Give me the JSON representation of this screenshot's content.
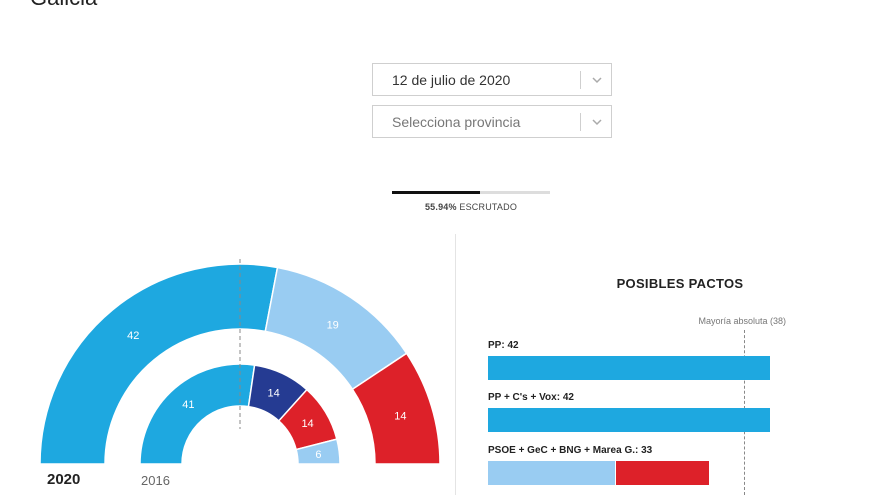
{
  "region": "Galicia",
  "date_select": {
    "value": "12 de julio de 2020"
  },
  "province_select": {
    "value": "Selecciona provincia"
  },
  "progress": {
    "percent_label": "55.94%",
    "suffix": "ESCRUTADO",
    "fraction": 0.5594
  },
  "hemicycle": {
    "year_current": "2020",
    "year_previous": "2016",
    "outer_ring": [
      {
        "seats": 42,
        "label": "42",
        "color": "#1ea8e0"
      },
      {
        "seats": 19,
        "label": "19",
        "color": "#99ccf2"
      },
      {
        "seats": 14,
        "label": "14",
        "color": "#dd2129"
      }
    ],
    "inner_ring": [
      {
        "seats": 41,
        "label": "41",
        "color": "#1ea8e0"
      },
      {
        "seats": 14,
        "label": "14",
        "color": "#253b92"
      },
      {
        "seats": 14,
        "label": "14",
        "color": "#dd2129"
      },
      {
        "seats": 6,
        "label": "6",
        "color": "#99ccf2"
      }
    ],
    "total_seats": 75
  },
  "pacts": {
    "title": "POSIBLES PACTOS",
    "majority_label": "Mayoría absoluta (38)",
    "majority": 38,
    "scale_max": 75,
    "items": [
      {
        "label": "PP: 42",
        "segments": [
          {
            "seats": 42,
            "color": "#1ea8e0"
          }
        ]
      },
      {
        "label": "PP + C's + Vox: 42",
        "segments": [
          {
            "seats": 42,
            "color": "#1ea8e0"
          }
        ]
      },
      {
        "label": "PSOE + GeC + BNG + Marea G.: 33",
        "segments": [
          {
            "seats": 19,
            "color": "#99ccf2"
          },
          {
            "seats": 14,
            "color": "#dd2129"
          }
        ]
      }
    ]
  }
}
